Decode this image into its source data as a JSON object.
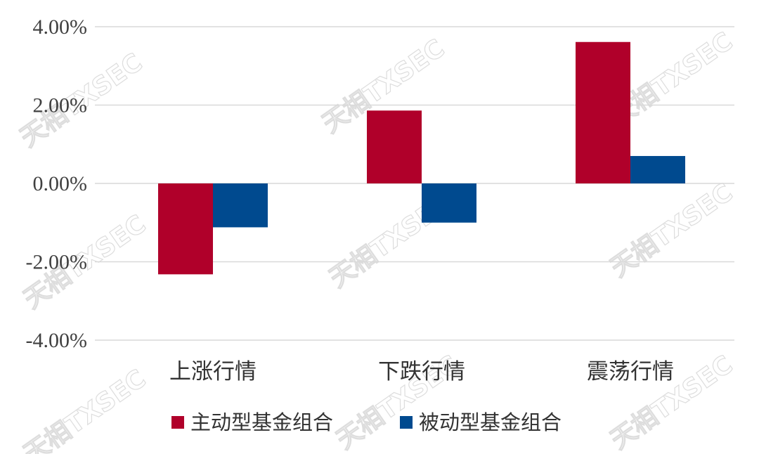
{
  "chart_data": {
    "type": "bar",
    "categories": [
      "上涨行情",
      "下跌行情",
      "震荡行情"
    ],
    "series": [
      {
        "name": "主动型基金组合",
        "color": "#b0002a",
        "values": [
          -2.32,
          1.86,
          3.61
        ]
      },
      {
        "name": "被动型基金组合",
        "color": "#004a8f",
        "values": [
          -1.12,
          -1.0,
          0.7
        ]
      }
    ],
    "ylim": [
      -4.0,
      4.0
    ],
    "yticks": [
      4.0,
      2.0,
      0.0,
      -2.0,
      -4.0
    ],
    "ytick_labels": [
      "4.00%",
      "2.00%",
      "0.00%",
      "-2.00%",
      "-4.00%"
    ],
    "grid": true,
    "legend_position": "bottom",
    "watermark": "天相TXSEC",
    "title": "",
    "xlabel": "",
    "ylabel": ""
  }
}
